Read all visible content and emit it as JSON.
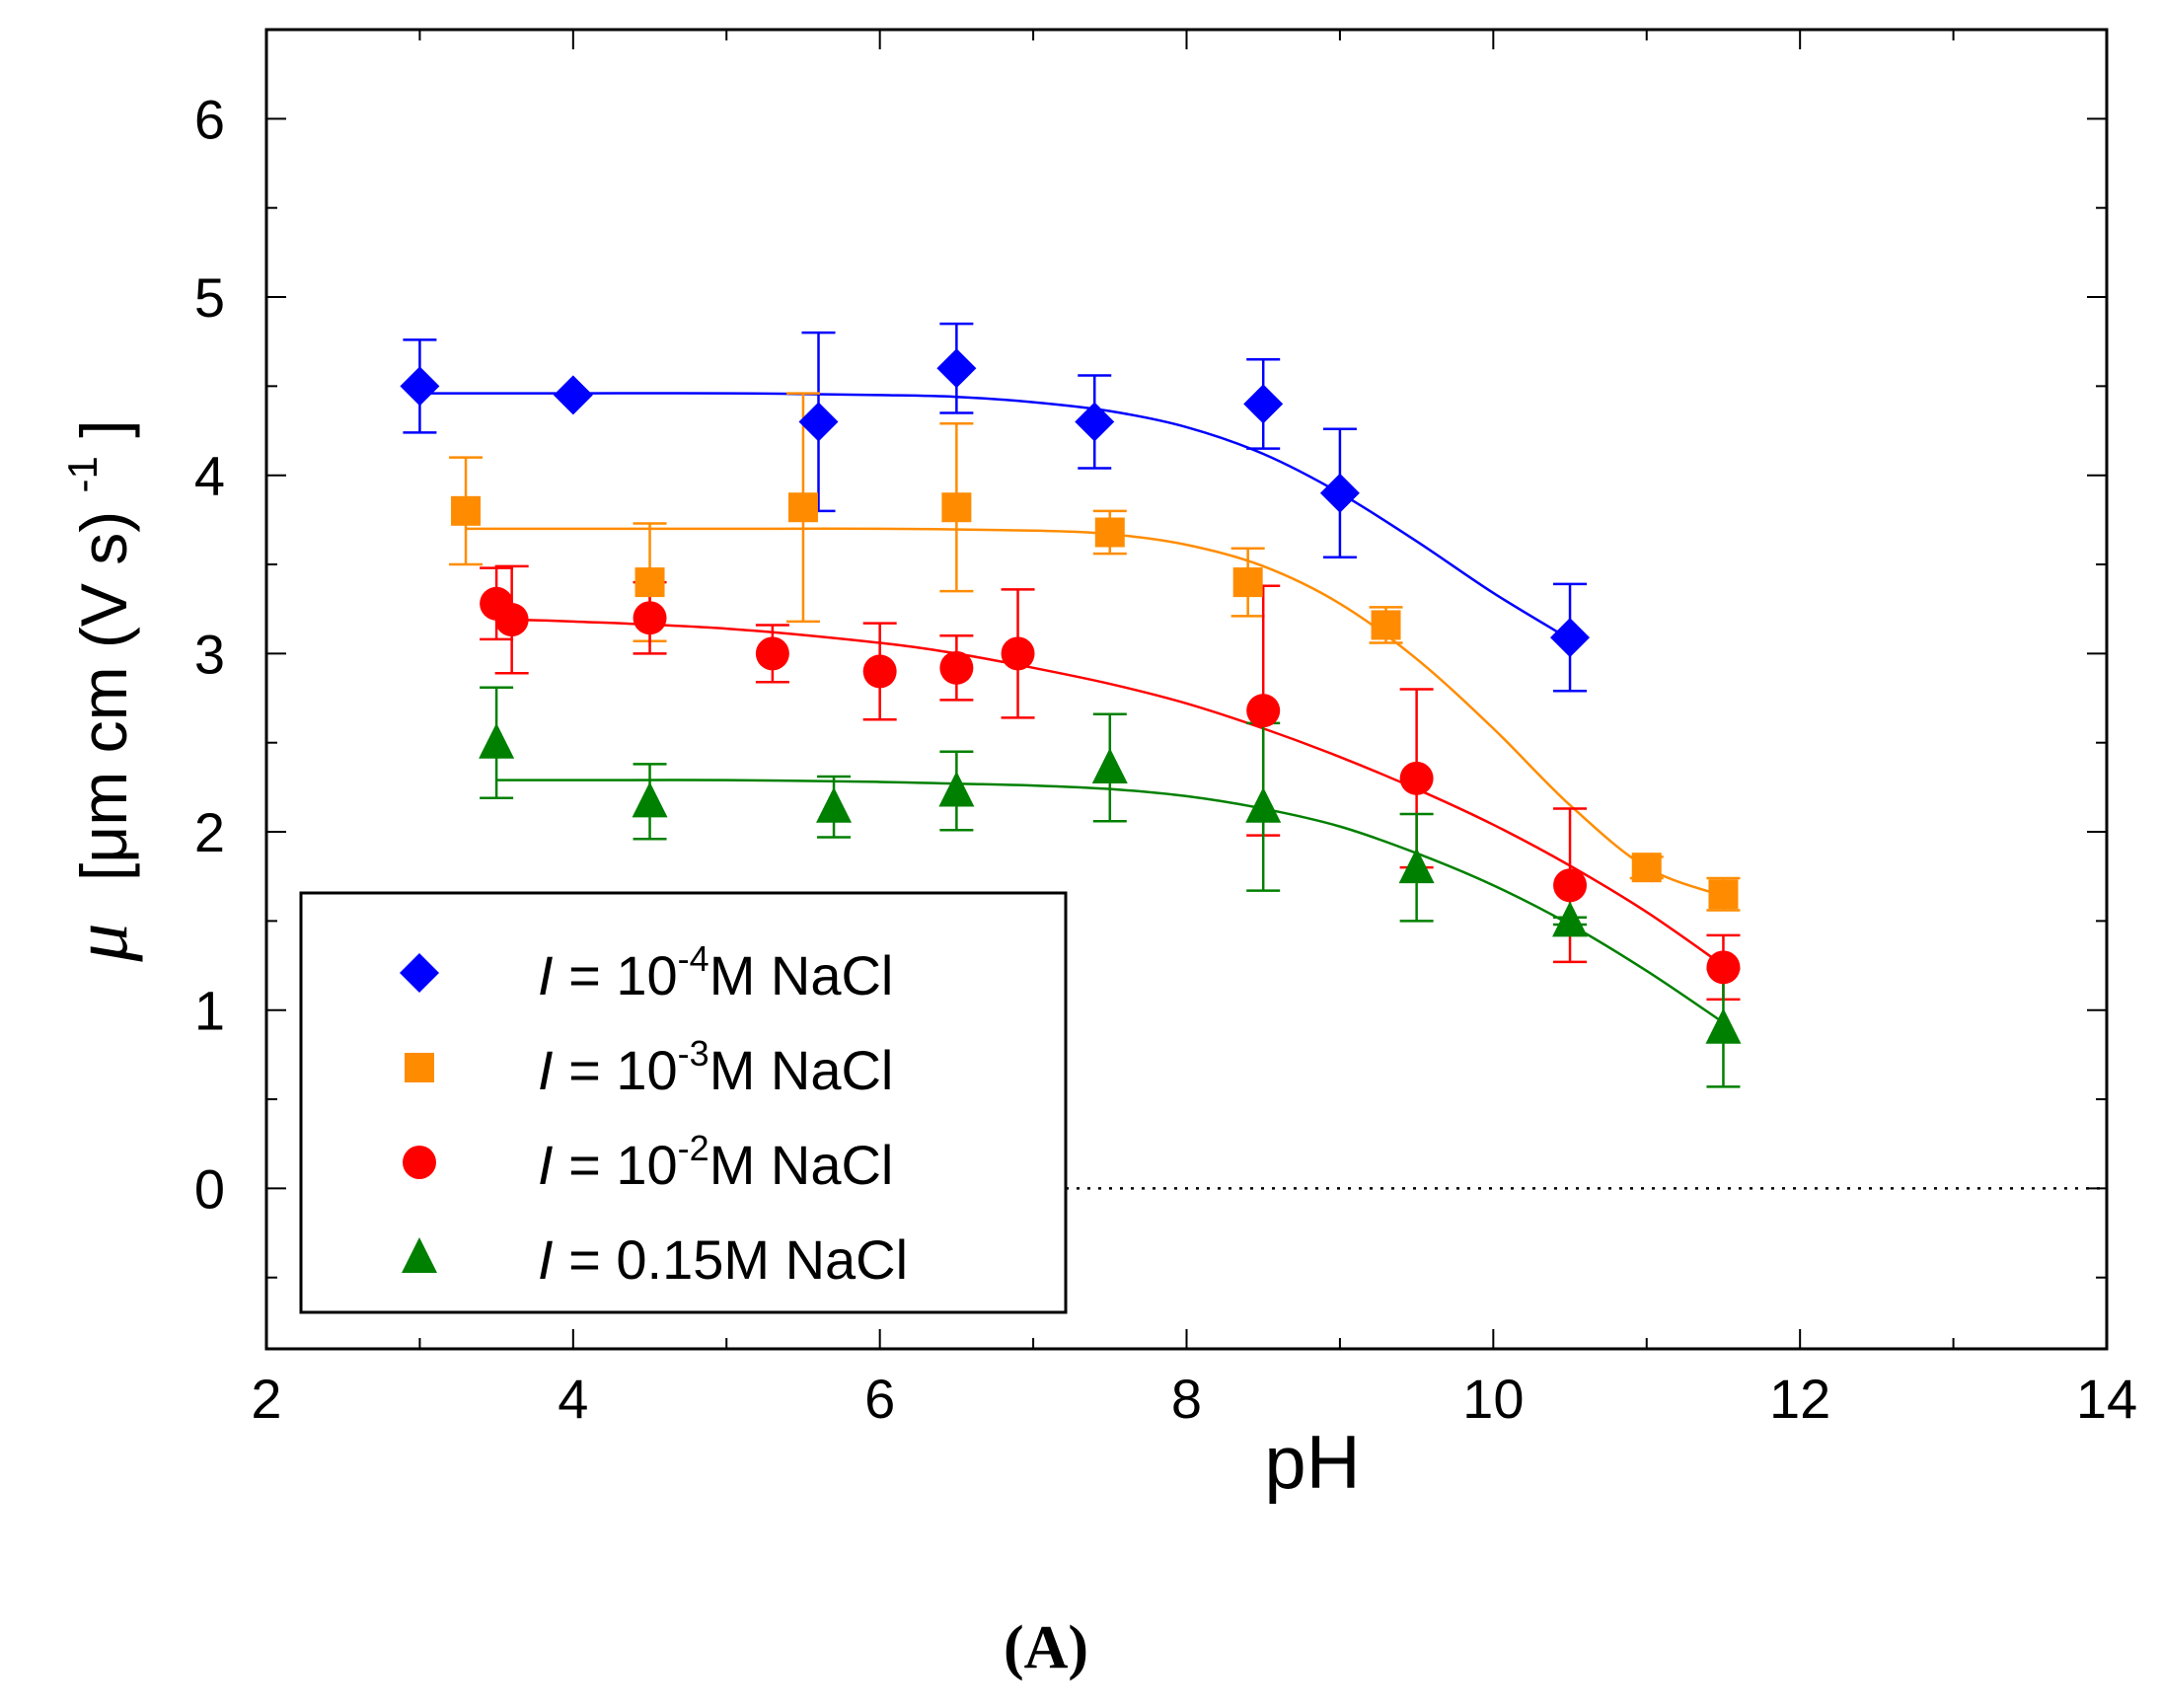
{
  "chart_data": {
    "type": "scatter",
    "title": "",
    "caption": "(A)",
    "xlabel": "pH",
    "ylabel_symbol": "μ",
    "ylabel_units": "[μm cm (V s)",
    "ylabel_exponent": "-1",
    "ylabel_close": "]",
    "xlim": [
      2,
      14
    ],
    "ylim": [
      -0.9,
      6.5
    ],
    "x_ticks": [
      2,
      4,
      6,
      8,
      10,
      12,
      14
    ],
    "x_tick_labels": [
      "2",
      "4",
      "6",
      "8",
      "10",
      "12",
      "14"
    ],
    "y_ticks": [
      0,
      1,
      2,
      3,
      4,
      5,
      6
    ],
    "y_tick_labels": [
      "0",
      "1",
      "2",
      "3",
      "4",
      "5",
      "6"
    ],
    "reference_line": {
      "y": 0,
      "style": "dotted"
    },
    "legend_position": "bottom-left",
    "series": [
      {
        "name": "l = 10-4M NaCl",
        "legend_prefix": "I",
        "legend_middle": " = 10",
        "legend_sup": "-4",
        "legend_suffix": "M NaCl",
        "color": "#0000ff",
        "marker": "diamond",
        "points": [
          {
            "x": 3.0,
            "y": 4.5,
            "err_low": 0.26,
            "err_high": 0.26
          },
          {
            "x": 4.0,
            "y": 4.45,
            "err_low": 0.0,
            "err_high": 0.0
          },
          {
            "x": 5.6,
            "y": 4.3,
            "err_low": 0.5,
            "err_high": 0.5
          },
          {
            "x": 6.5,
            "y": 4.6,
            "err_low": 0.25,
            "err_high": 0.25
          },
          {
            "x": 7.4,
            "y": 4.3,
            "err_low": 0.26,
            "err_high": 0.26
          },
          {
            "x": 8.5,
            "y": 4.4,
            "err_low": 0.25,
            "err_high": 0.25
          },
          {
            "x": 9.0,
            "y": 3.9,
            "err_low": 0.36,
            "err_high": 0.36
          },
          {
            "x": 10.5,
            "y": 3.09,
            "err_low": 0.3,
            "err_high": 0.3
          }
        ],
        "fit": {
          "x": [
            3.0,
            4.0,
            5.0,
            6.0,
            6.5,
            7.0,
            7.5,
            8.0,
            8.5,
            9.0,
            9.5,
            10.0,
            10.5
          ],
          "y": [
            4.46,
            4.46,
            4.46,
            4.45,
            4.44,
            4.41,
            4.36,
            4.27,
            4.12,
            3.9,
            3.63,
            3.34,
            3.08
          ]
        }
      },
      {
        "name": "l = 10-3M NaCl",
        "legend_prefix": "I",
        "legend_middle": " = 10",
        "legend_sup": "-3",
        "legend_suffix": "M NaCl",
        "color": "#ff8c00",
        "marker": "square",
        "points": [
          {
            "x": 3.3,
            "y": 3.8,
            "err_low": 0.3,
            "err_high": 0.3
          },
          {
            "x": 4.5,
            "y": 3.4,
            "err_low": 0.33,
            "err_high": 0.33
          },
          {
            "x": 5.5,
            "y": 3.82,
            "err_low": 0.64,
            "err_high": 0.64
          },
          {
            "x": 6.5,
            "y": 3.82,
            "err_low": 0.47,
            "err_high": 0.47
          },
          {
            "x": 7.5,
            "y": 3.68,
            "err_low": 0.12,
            "err_high": 0.12
          },
          {
            "x": 8.4,
            "y": 3.4,
            "err_low": 0.19,
            "err_high": 0.19
          },
          {
            "x": 9.3,
            "y": 3.16,
            "err_low": 0.1,
            "err_high": 0.1
          },
          {
            "x": 11.0,
            "y": 1.8,
            "err_low": 0.06,
            "err_high": 0.06
          },
          {
            "x": 11.5,
            "y": 1.65,
            "err_low": 0.09,
            "err_high": 0.09
          }
        ],
        "fit": {
          "x": [
            3.3,
            4.0,
            5.0,
            6.0,
            7.0,
            7.5,
            8.0,
            8.5,
            9.0,
            9.5,
            10.0,
            10.5,
            11.0,
            11.5
          ],
          "y": [
            3.7,
            3.7,
            3.7,
            3.7,
            3.69,
            3.67,
            3.61,
            3.49,
            3.28,
            2.97,
            2.58,
            2.15,
            1.8,
            1.64
          ]
        }
      },
      {
        "name": "l = 10-2M NaCl",
        "legend_prefix": "I",
        "legend_middle": " = 10",
        "legend_sup": "-2",
        "legend_suffix": "M NaCl",
        "color": "#ff0000",
        "marker": "circle",
        "points": [
          {
            "x": 3.5,
            "y": 3.28,
            "err_low": 0.2,
            "err_high": 0.2
          },
          {
            "x": 3.6,
            "y": 3.19,
            "err_low": 0.3,
            "err_high": 0.3
          },
          {
            "x": 4.5,
            "y": 3.2,
            "err_low": 0.2,
            "err_high": 0.2
          },
          {
            "x": 5.3,
            "y": 3.0,
            "err_low": 0.16,
            "err_high": 0.16
          },
          {
            "x": 6.0,
            "y": 2.9,
            "err_low": 0.27,
            "err_high": 0.27
          },
          {
            "x": 6.5,
            "y": 2.92,
            "err_low": 0.18,
            "err_high": 0.18
          },
          {
            "x": 6.9,
            "y": 3.0,
            "err_low": 0.36,
            "err_high": 0.36
          },
          {
            "x": 8.5,
            "y": 2.68,
            "err_low": 0.7,
            "err_high": 0.7
          },
          {
            "x": 9.5,
            "y": 2.3,
            "err_low": 0.5,
            "err_high": 0.5
          },
          {
            "x": 10.5,
            "y": 1.7,
            "err_low": 0.43,
            "err_high": 0.43
          },
          {
            "x": 11.5,
            "y": 1.24,
            "err_low": 0.18,
            "err_high": 0.18
          }
        ],
        "fit": {
          "x": [
            3.6,
            4.0,
            5.0,
            6.0,
            6.5,
            7.0,
            7.5,
            8.0,
            8.5,
            9.0,
            9.5,
            10.0,
            10.5,
            11.0,
            11.5
          ],
          "y": [
            3.19,
            3.18,
            3.14,
            3.06,
            3.0,
            2.92,
            2.83,
            2.72,
            2.58,
            2.42,
            2.24,
            2.04,
            1.81,
            1.55,
            1.25
          ]
        }
      },
      {
        "name": "l = 0.15M NaCl",
        "legend_prefix": "I",
        "legend_middle": " = 0.15M NaCl",
        "legend_sup": "",
        "legend_suffix": "",
        "color": "#008000",
        "marker": "triangle",
        "points": [
          {
            "x": 3.5,
            "y": 2.5,
            "err_low": 0.31,
            "err_high": 0.31
          },
          {
            "x": 4.5,
            "y": 2.17,
            "err_low": 0.21,
            "err_high": 0.21
          },
          {
            "x": 5.7,
            "y": 2.14,
            "err_low": 0.17,
            "err_high": 0.17
          },
          {
            "x": 6.5,
            "y": 2.23,
            "err_low": 0.22,
            "err_high": 0.22
          },
          {
            "x": 7.5,
            "y": 2.36,
            "err_low": 0.3,
            "err_high": 0.3
          },
          {
            "x": 8.5,
            "y": 2.14,
            "err_low": 0.47,
            "err_high": 0.47
          },
          {
            "x": 9.5,
            "y": 1.8,
            "err_low": 0.3,
            "err_high": 0.3
          },
          {
            "x": 10.5,
            "y": 1.5,
            "err_low": 0.02,
            "err_high": 0.02
          },
          {
            "x": 11.5,
            "y": 0.9,
            "err_low": 0.33,
            "err_high": 0.33
          }
        ],
        "fit": {
          "x": [
            3.5,
            4.0,
            5.0,
            6.0,
            6.5,
            7.0,
            7.5,
            8.0,
            8.5,
            9.0,
            9.5,
            10.0,
            10.5,
            11.0,
            11.5
          ],
          "y": [
            2.29,
            2.29,
            2.29,
            2.28,
            2.27,
            2.26,
            2.24,
            2.2,
            2.13,
            2.03,
            1.88,
            1.7,
            1.48,
            1.22,
            0.93
          ]
        }
      }
    ]
  }
}
